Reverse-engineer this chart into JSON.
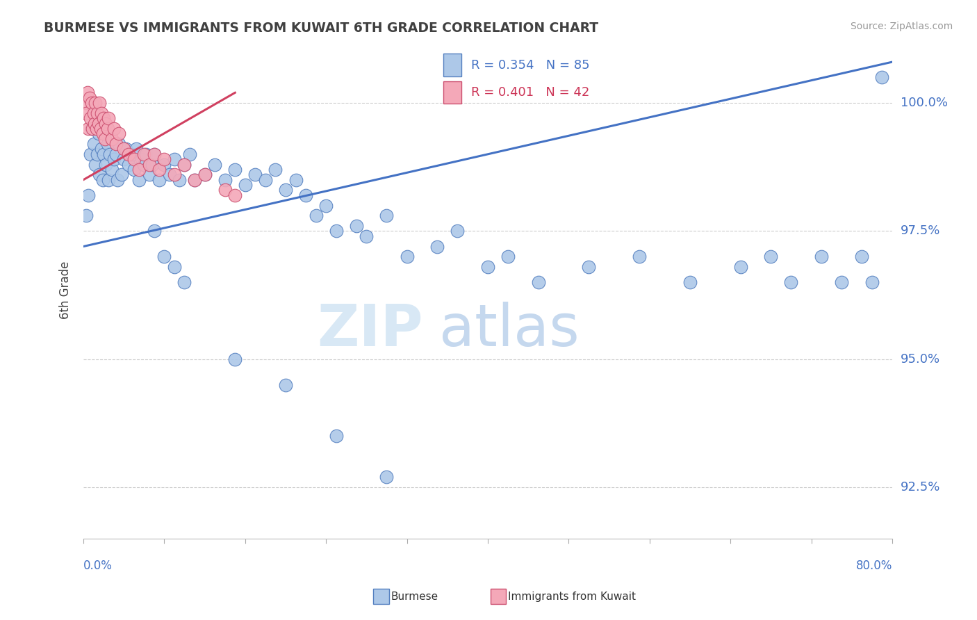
{
  "title": "BURMESE VS IMMIGRANTS FROM KUWAIT 6TH GRADE CORRELATION CHART",
  "source_text": "Source: ZipAtlas.com",
  "ylabel": "6th Grade",
  "xlim": [
    0.0,
    80.0
  ],
  "ylim": [
    91.5,
    101.2
  ],
  "yticks": [
    92.5,
    95.0,
    97.5,
    100.0
  ],
  "ytick_labels": [
    "92.5%",
    "95.0%",
    "97.5%",
    "100.0%"
  ],
  "blue_R": 0.354,
  "blue_N": 85,
  "pink_R": 0.401,
  "pink_N": 42,
  "blue_color": "#adc8e8",
  "pink_color": "#f4a8b8",
  "blue_edge_color": "#5580c0",
  "pink_edge_color": "#cc5070",
  "blue_line_color": "#4472c4",
  "pink_line_color": "#d04060",
  "axis_color": "#4472c4",
  "title_color": "#404040",
  "grid_color": "#cccccc",
  "watermark_zip_color": "#d8e8f5",
  "watermark_atlas_color": "#c5d8ee",
  "blue_scatter_x": [
    0.3,
    0.5,
    0.7,
    0.8,
    1.0,
    1.2,
    1.4,
    1.5,
    1.6,
    1.8,
    1.9,
    2.0,
    2.2,
    2.4,
    2.5,
    2.6,
    2.8,
    3.0,
    3.2,
    3.4,
    3.5,
    3.8,
    4.0,
    4.2,
    4.5,
    4.8,
    5.0,
    5.2,
    5.5,
    5.8,
    6.0,
    6.2,
    6.5,
    6.8,
    7.0,
    7.5,
    8.0,
    8.5,
    9.0,
    9.5,
    10.0,
    10.5,
    11.0,
    12.0,
    13.0,
    14.0,
    15.0,
    16.0,
    17.0,
    18.0,
    19.0,
    20.0,
    21.0,
    22.0,
    23.0,
    24.0,
    25.0,
    27.0,
    28.0,
    30.0,
    32.0,
    35.0,
    37.0,
    40.0,
    42.0,
    45.0,
    50.0,
    55.0,
    60.0,
    65.0,
    68.0,
    70.0,
    73.0,
    75.0,
    77.0,
    78.0,
    79.0,
    7.0,
    8.0,
    9.0,
    10.0,
    15.0,
    20.0,
    25.0,
    30.0
  ],
  "blue_scatter_y": [
    97.8,
    98.2,
    99.0,
    99.5,
    99.2,
    98.8,
    99.0,
    99.4,
    98.6,
    99.1,
    98.5,
    99.0,
    98.8,
    99.2,
    98.5,
    99.0,
    98.7,
    98.9,
    99.0,
    98.5,
    99.2,
    98.6,
    98.9,
    99.1,
    98.8,
    99.0,
    98.7,
    99.1,
    98.5,
    98.9,
    98.8,
    99.0,
    98.6,
    98.8,
    99.0,
    98.5,
    98.8,
    98.6,
    98.9,
    98.5,
    98.8,
    99.0,
    98.5,
    98.6,
    98.8,
    98.5,
    98.7,
    98.4,
    98.6,
    98.5,
    98.7,
    98.3,
    98.5,
    98.2,
    97.8,
    98.0,
    97.5,
    97.6,
    97.4,
    97.8,
    97.0,
    97.2,
    97.5,
    96.8,
    97.0,
    96.5,
    96.8,
    97.0,
    96.5,
    96.8,
    97.0,
    96.5,
    97.0,
    96.5,
    97.0,
    96.5,
    100.5,
    97.5,
    97.0,
    96.8,
    96.5,
    95.0,
    94.5,
    93.5,
    92.7
  ],
  "pink_scatter_x": [
    0.2,
    0.3,
    0.4,
    0.5,
    0.6,
    0.7,
    0.8,
    0.9,
    1.0,
    1.1,
    1.2,
    1.3,
    1.4,
    1.5,
    1.6,
    1.7,
    1.8,
    1.9,
    2.0,
    2.1,
    2.2,
    2.4,
    2.5,
    2.8,
    3.0,
    3.2,
    3.5,
    4.0,
    4.5,
    5.0,
    5.5,
    6.0,
    6.5,
    7.0,
    7.5,
    8.0,
    9.0,
    10.0,
    11.0,
    12.0,
    14.0,
    15.0
  ],
  "pink_scatter_y": [
    100.0,
    99.8,
    100.2,
    99.5,
    100.1,
    99.7,
    100.0,
    99.5,
    99.8,
    99.6,
    100.0,
    99.5,
    99.8,
    99.6,
    100.0,
    99.5,
    99.8,
    99.4,
    99.7,
    99.3,
    99.6,
    99.5,
    99.7,
    99.3,
    99.5,
    99.2,
    99.4,
    99.1,
    99.0,
    98.9,
    98.7,
    99.0,
    98.8,
    99.0,
    98.7,
    98.9,
    98.6,
    98.8,
    98.5,
    98.6,
    98.3,
    98.2
  ],
  "blue_line_x0": 0,
  "blue_line_y0": 97.2,
  "blue_line_x1": 80,
  "blue_line_y1": 100.8,
  "pink_line_x0": 0,
  "pink_line_y0": 98.5,
  "pink_line_x1": 15,
  "pink_line_y1": 100.2
}
